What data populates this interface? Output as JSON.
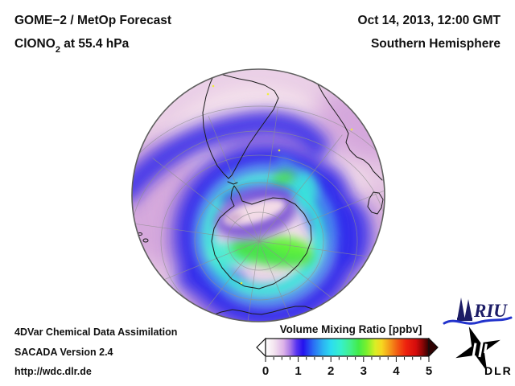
{
  "header": {
    "product": "GOME−2 / MetOp Forecast",
    "species": "ClONO",
    "species_subscript": "2",
    "level_suffix": " at 55.4 hPa",
    "datetime": "Oct 14, 2013, 12:00 GMT",
    "hemisphere": "Southern Hemisphere"
  },
  "footer": {
    "assimilation": "4DVar Chemical Data Assimilation",
    "version": "SACADA Version 2.4",
    "url": "http://wdc.dlr.de"
  },
  "colorbar": {
    "title": "Volume Mixing Ratio [ppbv]",
    "min": 0,
    "max": 5,
    "minor_step": 0.25,
    "tick_labels": [
      "0",
      "1",
      "2",
      "3",
      "4",
      "5"
    ],
    "gradient": [
      {
        "at": 0.0,
        "color": "#ffffff"
      },
      {
        "at": 0.25,
        "color": "#f4e6f0"
      },
      {
        "at": 0.55,
        "color": "#dcb2e8"
      },
      {
        "at": 0.75,
        "color": "#aa7ae6"
      },
      {
        "at": 0.95,
        "color": "#5834f0"
      },
      {
        "at": 1.15,
        "color": "#2412ee"
      },
      {
        "at": 1.45,
        "color": "#2a6af4"
      },
      {
        "at": 1.75,
        "color": "#2cb2f2"
      },
      {
        "at": 2.0,
        "color": "#2cdcf0"
      },
      {
        "at": 2.3,
        "color": "#36f0cc"
      },
      {
        "at": 2.6,
        "color": "#42f08a"
      },
      {
        "at": 2.85,
        "color": "#42ec48"
      },
      {
        "at": 3.1,
        "color": "#7cf02c"
      },
      {
        "at": 3.35,
        "color": "#d8ee26"
      },
      {
        "at": 3.55,
        "color": "#f6d820"
      },
      {
        "at": 3.8,
        "color": "#f49a1a"
      },
      {
        "at": 4.05,
        "color": "#f25812"
      },
      {
        "at": 4.3,
        "color": "#ee220e"
      },
      {
        "at": 4.6,
        "color": "#d60c0c"
      },
      {
        "at": 4.8,
        "color": "#8e0606"
      },
      {
        "at": 5.0,
        "color": "#300202"
      }
    ]
  },
  "map": {
    "projection": "orthographic",
    "view": "Southern Hemisphere centered near South Pole",
    "visible_features": [
      "South America",
      "southern Africa",
      "Madagascar",
      "Antarctica",
      "southern Australia"
    ],
    "field": "ClONO2 volume mixing ratio at 55.4 hPa",
    "palette": {
      "base": "#f2dce9",
      "lavender": "#cf9fd9",
      "purple_glow": "#8f6add",
      "blue": "#2f2aec",
      "light_blue": "#4b8cf2",
      "cyan": "#3ae2dc",
      "cyan_light": "#49ecd2",
      "green": "#49e24b",
      "bright_green": "#62f23a",
      "inner_purple": "#7e58d4",
      "inner_blue": "#3b36e2",
      "polar_hole": "#f3dbe7",
      "mauve": "#c89fca",
      "coast": "#1c1c1c",
      "graticule": "#8f8f8f",
      "limb": "#5f5f5f",
      "obs_dot": "#f0f02e"
    }
  },
  "logos": {
    "riu_text": "RIU",
    "riu_color": "#1c1c66",
    "riu_wave_color": "#2233cc",
    "dlr_text": "DLR",
    "dlr_color": "#000000"
  }
}
